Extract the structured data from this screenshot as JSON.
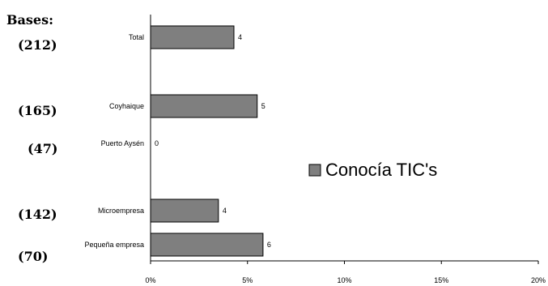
{
  "chart_data": {
    "type": "bar",
    "orientation": "horizontal",
    "bases_title": "Bases:",
    "categories": [
      "Total",
      "Coyhaique",
      "Puerto Aysén",
      "Microempresa",
      "Pequeña empresa"
    ],
    "bases": [
      "(212)",
      "(165)",
      "(47)",
      "(142)",
      "(70)"
    ],
    "series": [
      {
        "name": "Conocía TIC's",
        "values": [
          4,
          5,
          0,
          4,
          6
        ],
        "color": "#7f7f7f"
      }
    ],
    "data_labels": [
      "4",
      "5",
      "0",
      "4",
      "6"
    ],
    "x_axis": {
      "ticks": [
        0,
        5,
        10,
        15,
        20
      ],
      "tick_labels": [
        "0%",
        "5%",
        "10%",
        "15%",
        "20%"
      ],
      "xlim": [
        0,
        20
      ]
    },
    "bar_scale_values": [
      4.3,
      5.5,
      0,
      3.5,
      5.8
    ],
    "legend_position": "right",
    "grid": false
  }
}
